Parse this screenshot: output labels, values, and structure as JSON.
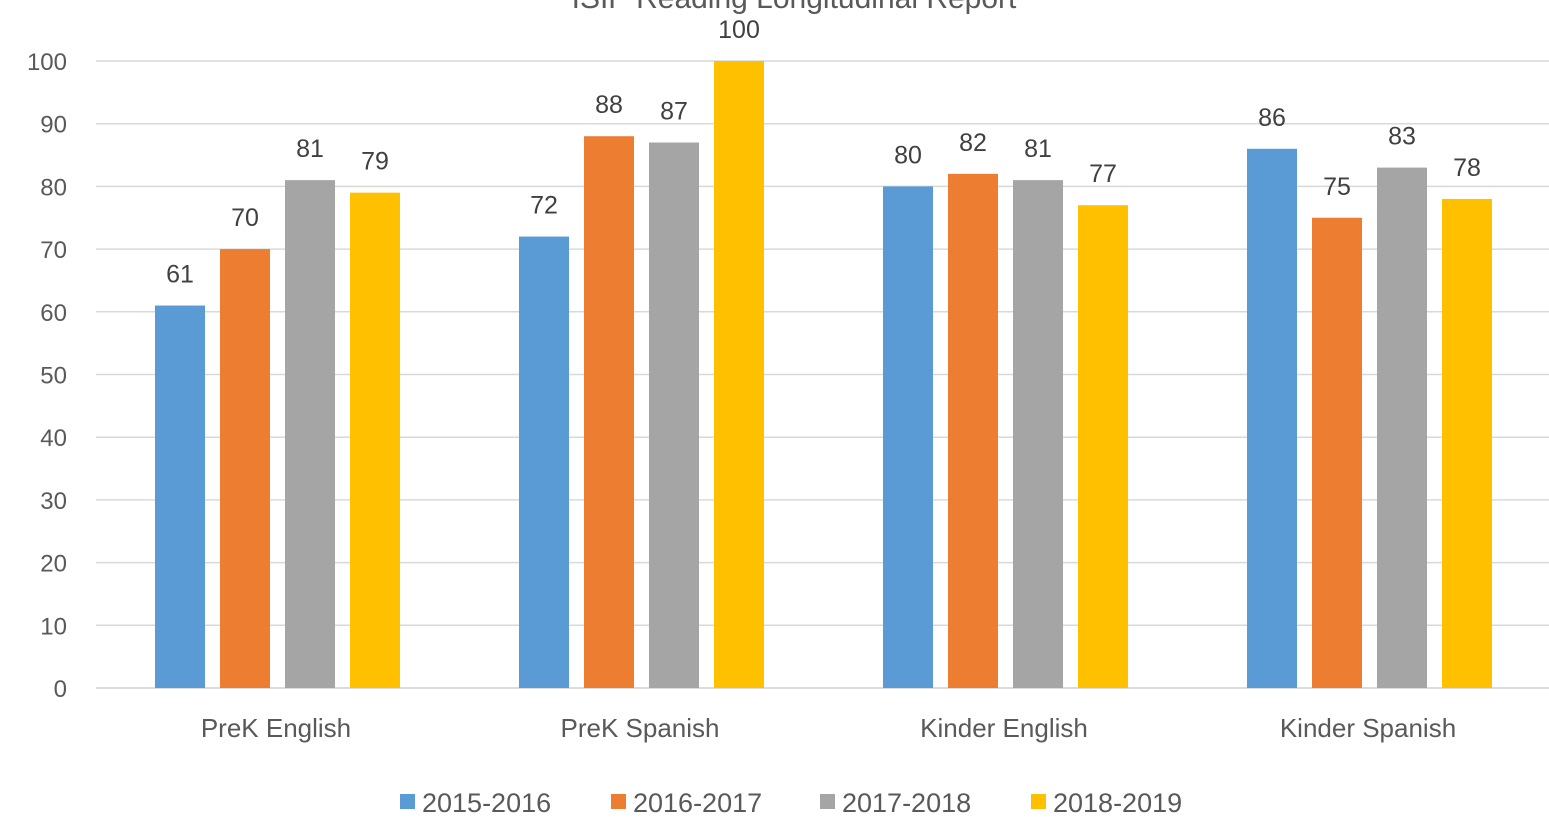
{
  "chart_data": {
    "type": "bar",
    "title": "ISIP Reading Longitudinal Report",
    "xlabel": "",
    "ylabel": "",
    "categories": [
      "PreK English",
      "PreK Spanish",
      "Kinder English",
      "Kinder Spanish"
    ],
    "series": [
      {
        "name": "2015-2016",
        "color": "#5B9BD5",
        "values": [
          61,
          72,
          80,
          86
        ]
      },
      {
        "name": "2016-2017",
        "color": "#ED7D31",
        "values": [
          70,
          88,
          82,
          75
        ]
      },
      {
        "name": "2017-2018",
        "color": "#A5A5A5",
        "values": [
          81,
          87,
          81,
          83
        ]
      },
      {
        "name": "2018-2019",
        "color": "#FFC000",
        "values": [
          79,
          100,
          77,
          78
        ]
      }
    ],
    "ylim": [
      0,
      100
    ],
    "yticks": [
      0,
      10,
      20,
      30,
      40,
      50,
      60,
      70,
      80,
      90,
      100
    ],
    "grid": true,
    "legend_position": "bottom",
    "data_labels": true
  }
}
